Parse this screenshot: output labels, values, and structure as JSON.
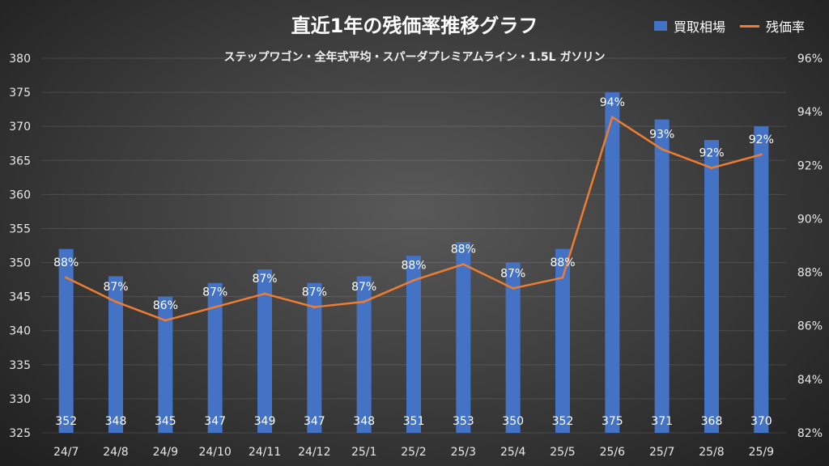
{
  "chart_data": {
    "type": "bar+line",
    "title": "直近1年の残価率推移グラフ",
    "subtitle": "ステップワゴン・全年式平均・スパーダプレミアムライン・1.5L ガソリン",
    "categories": [
      "24/7",
      "24/8",
      "24/9",
      "24/10",
      "24/11",
      "24/12",
      "25/1",
      "25/2",
      "25/3",
      "25/4",
      "25/5",
      "25/6",
      "25/7",
      "25/8",
      "25/9"
    ],
    "series": [
      {
        "name": "買取相場",
        "type": "bar",
        "axis": "left",
        "color": "#4472c4",
        "values": [
          352,
          348,
          345,
          347,
          349,
          347,
          348,
          351,
          353,
          350,
          352,
          375,
          371,
          368,
          370
        ]
      },
      {
        "name": "残価率",
        "type": "line",
        "axis": "right",
        "color": "#ed7d31",
        "values": [
          87.8,
          86.9,
          86.2,
          86.7,
          87.2,
          86.7,
          86.9,
          87.7,
          88.3,
          87.4,
          87.8,
          93.8,
          92.6,
          91.9,
          92.4
        ],
        "labels": [
          "88%",
          "87%",
          "86%",
          "87%",
          "87%",
          "87%",
          "87%",
          "88%",
          "88%",
          "87%",
          "88%",
          "94%",
          "93%",
          "92%",
          "92%"
        ]
      }
    ],
    "y_left": {
      "min": 325,
      "max": 380,
      "step": 5,
      "ticks": [
        "325",
        "330",
        "335",
        "340",
        "345",
        "350",
        "355",
        "360",
        "365",
        "370",
        "375",
        "380"
      ]
    },
    "y_right": {
      "min": 82,
      "max": 96,
      "step": 2,
      "ticks": [
        "82%",
        "84%",
        "86%",
        "88%",
        "90%",
        "92%",
        "94%",
        "96%"
      ]
    },
    "legend": "top-right",
    "grid": true
  }
}
